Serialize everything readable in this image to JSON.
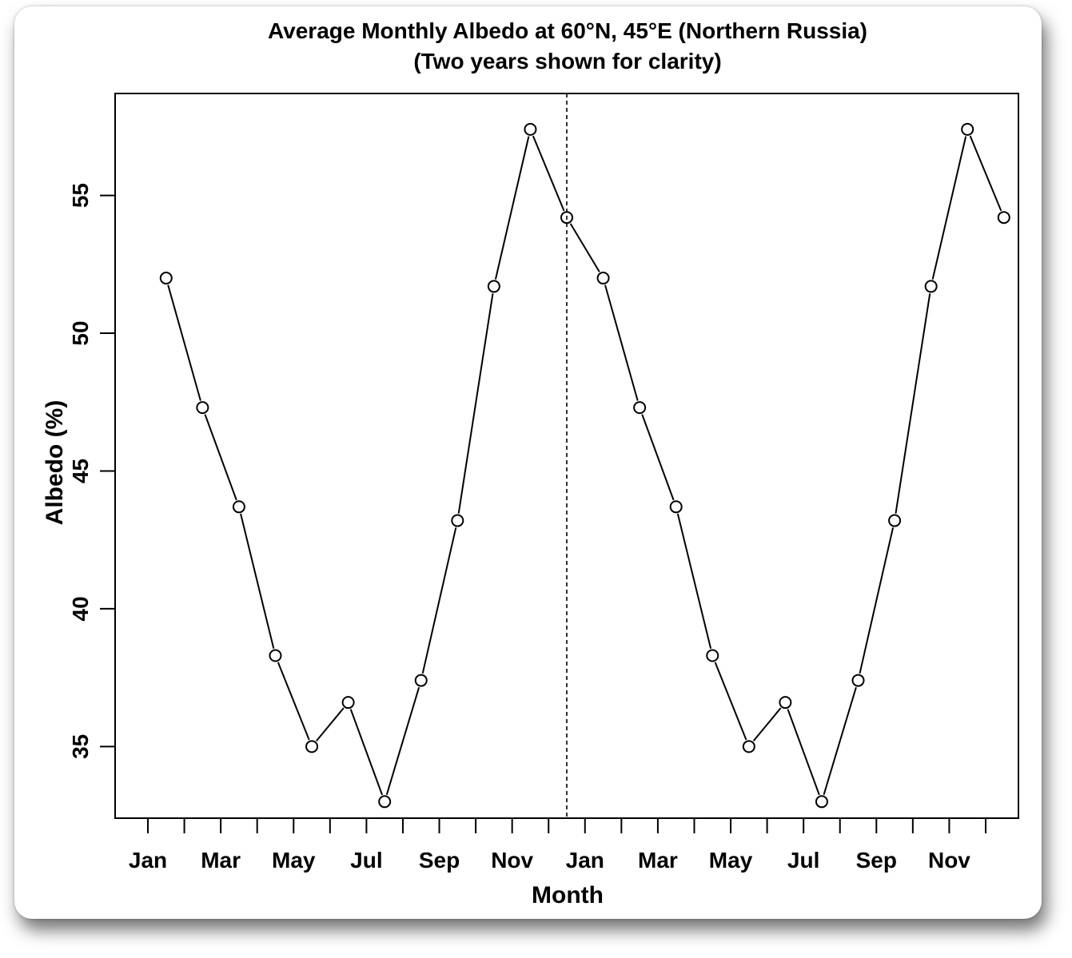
{
  "chart_data": {
    "type": "line",
    "title": "Average Monthly Albedo at 60°N, 45°E (Northern Russia)",
    "subtitle": "(Two years shown for clarity)",
    "xlabel": "Month",
    "ylabel": "Albedo (%)",
    "x_tick_labels": [
      "Jan",
      "Mar",
      "May",
      "Jul",
      "Sep",
      "Nov",
      "Jan",
      "Mar",
      "May",
      "Jul",
      "Sep",
      "Nov"
    ],
    "y_ticks": [
      35,
      40,
      45,
      50,
      55
    ],
    "ylim": [
      32.4,
      58.7
    ],
    "xlim": [
      0.1,
      24.9
    ],
    "marker": "open-circle",
    "series_color": "#000000",
    "year_divider": {
      "at": 12.5,
      "style": "dashed"
    },
    "x": [
      1.5,
      2.5,
      3.5,
      4.5,
      5.5,
      6.5,
      7.5,
      8.5,
      9.5,
      10.5,
      11.5,
      12.5,
      13.5,
      14.5,
      15.5,
      16.5,
      17.5,
      18.5,
      19.5,
      20.5,
      21.5,
      22.5,
      23.5,
      24.5
    ],
    "values": [
      52.0,
      47.3,
      43.7,
      38.3,
      35.0,
      36.6,
      33.0,
      37.4,
      43.2,
      51.7,
      57.4,
      54.2,
      52.0,
      47.3,
      43.7,
      38.3,
      35.0,
      36.6,
      33.0,
      37.4,
      43.2,
      51.7,
      57.4,
      54.2
    ]
  }
}
